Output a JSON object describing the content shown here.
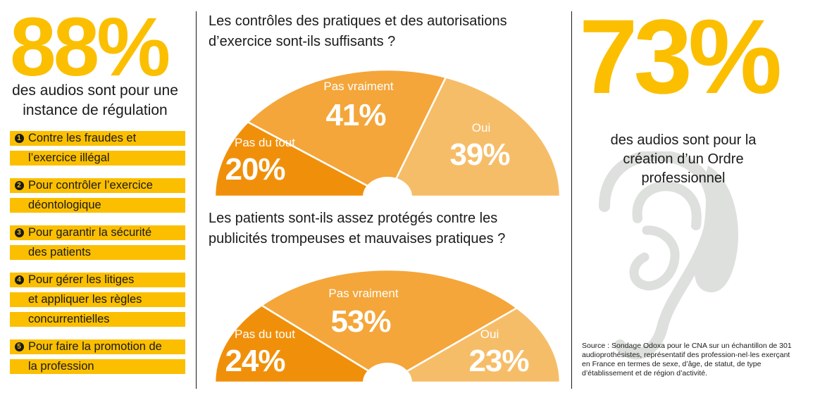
{
  "colors": {
    "accent_yellow": "#fbbf00",
    "pas_du_tout": "#f0900a",
    "pas_vraiment": "#f4a63a",
    "oui": "#f6bd68",
    "ear_grey": "#dde0dc",
    "text": "#1a1a1a"
  },
  "left": {
    "stat_value": "88%",
    "caption": "des audios sont pour une instance de régulation",
    "reasons": [
      {
        "num": "1",
        "lines": [
          "Contre les fraudes et",
          "l’exercice illégal"
        ]
      },
      {
        "num": "2",
        "lines": [
          "Pour contrôler l’exercice",
          "déontologique"
        ]
      },
      {
        "num": "3",
        "lines": [
          "Pour garantir la sécurité",
          "des patients"
        ]
      },
      {
        "num": "4",
        "lines": [
          "Pour gérer les litiges",
          "et appliquer les règles",
          "concurrentielles"
        ]
      },
      {
        "num": "5",
        "lines": [
          "Pour faire la promotion de",
          "la profession"
        ]
      }
    ]
  },
  "right": {
    "stat_value": "73%",
    "caption": "des audios sont pour la création d’un Ordre professionnel",
    "icon": "ear-icon",
    "source": "Source : Sondage Odoxa pour le CNA sur un échantillon de 301 audioprothésistes, représentatif des profession-nel·les exerçant en France en termes de sexe, d’âge, de statut, de type d’établissement et de région d’activité."
  },
  "chart_data": [
    {
      "type": "pie",
      "variant": "semicircle-gauge",
      "title": "Les contrôles des pratiques et des autorisations d’exercice sont-ils suffisants ?",
      "categories": [
        "Pas du tout",
        "Pas vraiment",
        "Oui"
      ],
      "values": [
        20,
        41,
        39
      ],
      "unit": "%",
      "labels": [
        "20%",
        "41%",
        "39%"
      ]
    },
    {
      "type": "pie",
      "variant": "semicircle-gauge",
      "title": "Les patients sont-ils assez protégés contre les publicités trompeuses et mauvaises pratiques ?",
      "categories": [
        "Pas du tout",
        "Pas vraiment",
        "Oui"
      ],
      "values": [
        24,
        53,
        23
      ],
      "unit": "%",
      "labels": [
        "24%",
        "53%",
        "23%"
      ]
    }
  ]
}
